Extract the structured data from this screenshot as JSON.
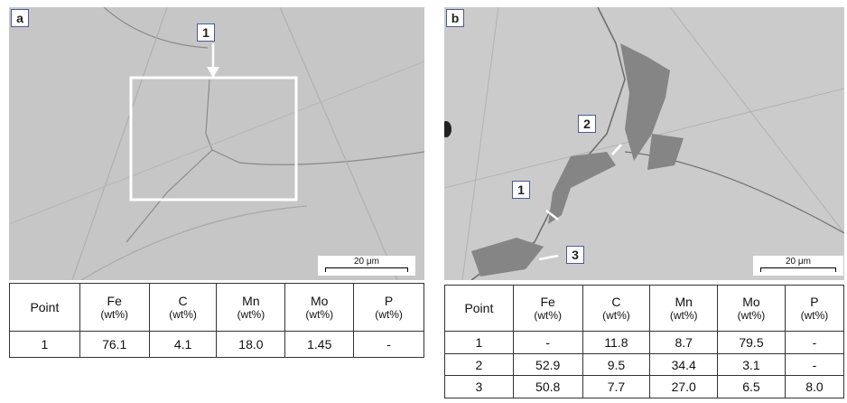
{
  "panels": [
    {
      "label": "a",
      "scale_bar": "20 μm",
      "markers": [
        "1"
      ],
      "table": {
        "header": [
          {
            "name": "Point"
          },
          {
            "name": "Fe",
            "unit": "(wt%)"
          },
          {
            "name": "C",
            "unit": "(wt%)"
          },
          {
            "name": "Mn",
            "unit": "(wt%)"
          },
          {
            "name": "Mo",
            "unit": "(wt%)"
          },
          {
            "name": "P",
            "unit": "(wt%)"
          }
        ],
        "rows": [
          [
            "1",
            "76.1",
            "4.1",
            "18.0",
            "1.45",
            "-"
          ]
        ]
      }
    },
    {
      "label": "b",
      "scale_bar": "20 μm",
      "markers": [
        "1",
        "2",
        "3"
      ],
      "table": {
        "header": [
          {
            "name": "Point"
          },
          {
            "name": "Fe",
            "unit": "(wt%)"
          },
          {
            "name": "C",
            "unit": "(wt%)"
          },
          {
            "name": "Mn",
            "unit": "(wt%)"
          },
          {
            "name": "Mo",
            "unit": "(wt%)"
          },
          {
            "name": "P",
            "unit": "(wt%)"
          }
        ],
        "rows": [
          [
            "1",
            "-",
            "11.8",
            "8.7",
            "79.5",
            "-"
          ],
          [
            "2",
            "52.9",
            "9.5",
            "34.4",
            "3.1",
            "-"
          ],
          [
            "3",
            "50.8",
            "7.7",
            "27.0",
            "6.5",
            "8.0"
          ]
        ]
      }
    }
  ]
}
